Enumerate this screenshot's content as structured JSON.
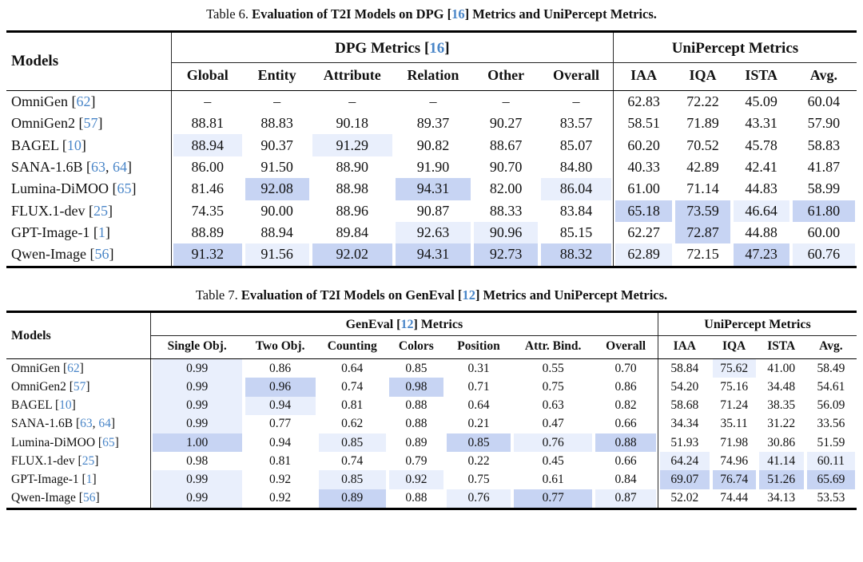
{
  "page": {
    "background": "#ffffff",
    "cite_color": "#4a86c8",
    "highlight_light": "#e9effc",
    "highlight_dark": "#c7d4f3"
  },
  "tables": [
    {
      "id": "table-6",
      "caption": [
        {
          "text": "Table 6. ",
          "bold": false
        },
        {
          "text": "Evaluation of T2I Models on DPG [",
          "bold": true
        },
        {
          "text": "16",
          "bold": true,
          "cite": true
        },
        {
          "text": "] Metrics and UniPercept Metrics.",
          "bold": true
        }
      ],
      "models_label": "Models",
      "groups": [
        {
          "label_parts": [
            {
              "text": "DPG Metrics ["
            },
            {
              "text": "16",
              "cite": true
            },
            {
              "text": "]"
            }
          ],
          "columns": [
            "Global",
            "Entity",
            "Attribute",
            "Relation",
            "Other",
            "Overall"
          ]
        },
        {
          "label_parts": [
            {
              "text": "UniPercept Metrics"
            }
          ],
          "columns": [
            "IAA",
            "IQA",
            "ISTA",
            "Avg."
          ]
        }
      ],
      "rows": [
        {
          "model_parts": [
            {
              "text": "OmniGen ["
            },
            {
              "text": "62",
              "cite": true
            },
            {
              "text": "]"
            }
          ],
          "values": [
            "–",
            "–",
            "–",
            "–",
            "–",
            "–",
            "62.83",
            "72.22",
            "45.09",
            "60.04"
          ],
          "hl": [
            0,
            0,
            0,
            0,
            0,
            0,
            0,
            0,
            0,
            0
          ]
        },
        {
          "model_parts": [
            {
              "text": "OmniGen2 ["
            },
            {
              "text": "57",
              "cite": true
            },
            {
              "text": "]"
            }
          ],
          "values": [
            "88.81",
            "88.83",
            "90.18",
            "89.37",
            "90.27",
            "83.57",
            "58.51",
            "71.89",
            "43.31",
            "57.90"
          ],
          "hl": [
            0,
            0,
            0,
            0,
            0,
            0,
            0,
            0,
            0,
            0
          ]
        },
        {
          "model_parts": [
            {
              "text": "BAGEL ["
            },
            {
              "text": "10",
              "cite": true
            },
            {
              "text": "]"
            }
          ],
          "values": [
            "88.94",
            "90.37",
            "91.29",
            "90.82",
            "88.67",
            "85.07",
            "60.20",
            "70.52",
            "45.78",
            "58.83"
          ],
          "hl": [
            1,
            0,
            1,
            0,
            0,
            0,
            0,
            0,
            0,
            0
          ]
        },
        {
          "model_parts": [
            {
              "text": "SANA-1.6B ["
            },
            {
              "text": "63",
              "cite": true
            },
            {
              "text": ", "
            },
            {
              "text": "64",
              "cite": true
            },
            {
              "text": "]"
            }
          ],
          "values": [
            "86.00",
            "91.50",
            "88.90",
            "91.90",
            "90.70",
            "84.80",
            "40.33",
            "42.89",
            "42.41",
            "41.87"
          ],
          "hl": [
            0,
            0,
            0,
            0,
            0,
            0,
            0,
            0,
            0,
            0
          ]
        },
        {
          "model_parts": [
            {
              "text": "Lumina-DiMOO ["
            },
            {
              "text": "65",
              "cite": true
            },
            {
              "text": "]"
            }
          ],
          "values": [
            "81.46",
            "92.08",
            "88.98",
            "94.31",
            "82.00",
            "86.04",
            "61.00",
            "71.14",
            "44.83",
            "58.99"
          ],
          "hl": [
            0,
            2,
            0,
            2,
            0,
            1,
            0,
            0,
            0,
            0
          ]
        },
        {
          "model_parts": [
            {
              "text": "FLUX.1-dev ["
            },
            {
              "text": "25",
              "cite": true
            },
            {
              "text": "]"
            }
          ],
          "values": [
            "74.35",
            "90.00",
            "88.96",
            "90.87",
            "88.33",
            "83.84",
            "65.18",
            "73.59",
            "46.64",
            "61.80"
          ],
          "hl": [
            0,
            0,
            0,
            0,
            0,
            0,
            2,
            2,
            1,
            2
          ]
        },
        {
          "model_parts": [
            {
              "text": "GPT-Image-1 ["
            },
            {
              "text": "1",
              "cite": true
            },
            {
              "text": "]"
            }
          ],
          "values": [
            "88.89",
            "88.94",
            "89.84",
            "92.63",
            "90.96",
            "85.15",
            "62.27",
            "72.87",
            "44.88",
            "60.00"
          ],
          "hl": [
            0,
            0,
            0,
            1,
            1,
            0,
            0,
            2,
            0,
            0
          ]
        },
        {
          "model_parts": [
            {
              "text": "Qwen-Image ["
            },
            {
              "text": "56",
              "cite": true
            },
            {
              "text": "]"
            }
          ],
          "values": [
            "91.32",
            "91.56",
            "92.02",
            "94.31",
            "92.73",
            "88.32",
            "62.89",
            "72.15",
            "47.23",
            "60.76"
          ],
          "hl": [
            2,
            1,
            2,
            2,
            2,
            2,
            1,
            0,
            2,
            1
          ]
        }
      ]
    },
    {
      "id": "table-7",
      "caption": [
        {
          "text": "Table 7. ",
          "bold": false
        },
        {
          "text": "Evaluation of T2I Models on GenEval [",
          "bold": true
        },
        {
          "text": "12",
          "bold": true,
          "cite": true
        },
        {
          "text": "] Metrics and UniPercept Metrics.",
          "bold": true
        }
      ],
      "models_label": "Models",
      "groups": [
        {
          "label_parts": [
            {
              "text": "GenEval ["
            },
            {
              "text": "12",
              "cite": true
            },
            {
              "text": "] Metrics"
            }
          ],
          "columns": [
            "Single Obj.",
            "Two Obj.",
            "Counting",
            "Colors",
            "Position",
            "Attr. Bind.",
            "Overall"
          ]
        },
        {
          "label_parts": [
            {
              "text": "UniPercept Metrics"
            }
          ],
          "columns": [
            "IAA",
            "IQA",
            "ISTA",
            "Avg."
          ]
        }
      ],
      "rows": [
        {
          "model_parts": [
            {
              "text": "OmniGen ["
            },
            {
              "text": "62",
              "cite": true
            },
            {
              "text": "]"
            }
          ],
          "values": [
            "0.99",
            "0.86",
            "0.64",
            "0.85",
            "0.31",
            "0.55",
            "0.70",
            "58.84",
            "75.62",
            "41.00",
            "58.49"
          ],
          "hl": [
            1,
            0,
            0,
            0,
            0,
            0,
            0,
            0,
            1,
            0,
            0
          ]
        },
        {
          "model_parts": [
            {
              "text": "OmniGen2 ["
            },
            {
              "text": "57",
              "cite": true
            },
            {
              "text": "]"
            }
          ],
          "values": [
            "0.99",
            "0.96",
            "0.74",
            "0.98",
            "0.71",
            "0.75",
            "0.86",
            "54.20",
            "75.16",
            "34.48",
            "54.61"
          ],
          "hl": [
            1,
            2,
            0,
            2,
            0,
            0,
            0,
            0,
            0,
            0,
            0
          ]
        },
        {
          "model_parts": [
            {
              "text": "BAGEL ["
            },
            {
              "text": "10",
              "cite": true
            },
            {
              "text": "]"
            }
          ],
          "values": [
            "0.99",
            "0.94",
            "0.81",
            "0.88",
            "0.64",
            "0.63",
            "0.82",
            "58.68",
            "71.24",
            "38.35",
            "56.09"
          ],
          "hl": [
            1,
            1,
            0,
            0,
            0,
            0,
            0,
            0,
            0,
            0,
            0
          ]
        },
        {
          "model_parts": [
            {
              "text": "SANA-1.6B ["
            },
            {
              "text": "63",
              "cite": true
            },
            {
              "text": ", "
            },
            {
              "text": "64",
              "cite": true
            },
            {
              "text": "]"
            }
          ],
          "values": [
            "0.99",
            "0.77",
            "0.62",
            "0.88",
            "0.21",
            "0.47",
            "0.66",
            "34.34",
            "35.11",
            "31.22",
            "33.56"
          ],
          "hl": [
            1,
            0,
            0,
            0,
            0,
            0,
            0,
            0,
            0,
            0,
            0
          ]
        },
        {
          "model_parts": [
            {
              "text": "Lumina-DiMOO ["
            },
            {
              "text": "65",
              "cite": true
            },
            {
              "text": "]"
            }
          ],
          "values": [
            "1.00",
            "0.94",
            "0.85",
            "0.89",
            "0.85",
            "0.76",
            "0.88",
            "51.93",
            "71.98",
            "30.86",
            "51.59"
          ],
          "hl": [
            2,
            0,
            1,
            0,
            2,
            1,
            2,
            0,
            0,
            0,
            0
          ]
        },
        {
          "model_parts": [
            {
              "text": "FLUX.1-dev ["
            },
            {
              "text": "25",
              "cite": true
            },
            {
              "text": "]"
            }
          ],
          "values": [
            "0.98",
            "0.81",
            "0.74",
            "0.79",
            "0.22",
            "0.45",
            "0.66",
            "64.24",
            "74.96",
            "41.14",
            "60.11"
          ],
          "hl": [
            0,
            0,
            0,
            0,
            0,
            0,
            0,
            1,
            0,
            1,
            1
          ]
        },
        {
          "model_parts": [
            {
              "text": "GPT-Image-1 ["
            },
            {
              "text": "1",
              "cite": true
            },
            {
              "text": "]"
            }
          ],
          "values": [
            "0.99",
            "0.92",
            "0.85",
            "0.92",
            "0.75",
            "0.61",
            "0.84",
            "69.07",
            "76.74",
            "51.26",
            "65.69"
          ],
          "hl": [
            1,
            0,
            1,
            1,
            0,
            0,
            0,
            2,
            2,
            2,
            2
          ]
        },
        {
          "model_parts": [
            {
              "text": "Qwen-Image ["
            },
            {
              "text": "56",
              "cite": true
            },
            {
              "text": "]"
            }
          ],
          "values": [
            "0.99",
            "0.92",
            "0.89",
            "0.88",
            "0.76",
            "0.77",
            "0.87",
            "52.02",
            "74.44",
            "34.13",
            "53.53"
          ],
          "hl": [
            1,
            0,
            2,
            0,
            1,
            2,
            1,
            0,
            0,
            0,
            0
          ]
        }
      ]
    }
  ]
}
